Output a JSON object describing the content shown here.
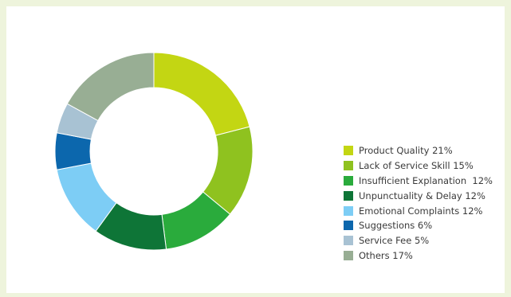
{
  "chart_data": {
    "type": "pie",
    "donut": true,
    "title": "",
    "legend_position": "right",
    "slices": [
      {
        "label": "Product Quality 21%",
        "value": 21,
        "color": "#c3d613"
      },
      {
        "label": "Lack of Service Skill 15%",
        "value": 15,
        "color": "#8fc21f"
      },
      {
        "label": "Insufficient Explanation  12%",
        "value": 12,
        "color": "#2aab3c"
      },
      {
        "label": "Unpunctuality & Delay 12%",
        "value": 12,
        "color": "#0e7537"
      },
      {
        "label": "Emotional Complaints 12%",
        "value": 12,
        "color": "#7dcdf5"
      },
      {
        "label": "Suggestions 6%",
        "value": 6,
        "color": "#0c67ad"
      },
      {
        "label": "Service Fee 5%",
        "value": 5,
        "color": "#a8c2d3"
      },
      {
        "label": "Others 17%",
        "value": 17,
        "color": "#98ae94"
      }
    ]
  },
  "colors": {
    "page_background": "#eef4dc",
    "panel_background": "#ffffff"
  }
}
